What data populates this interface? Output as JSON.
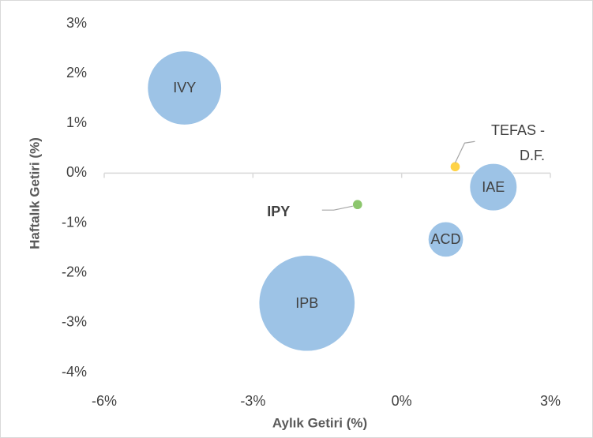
{
  "chart_data": {
    "type": "scatter",
    "x_label": "Aylık Getiri (%)",
    "y_label": "Haftalık Getiri (%)",
    "xlim": [
      -6,
      3
    ],
    "ylim": [
      -4,
      3
    ],
    "xticks": [
      {
        "value": -6,
        "label": "-6%"
      },
      {
        "value": -3,
        "label": "-3%"
      },
      {
        "value": 0,
        "label": "0%"
      },
      {
        "value": 3,
        "label": "3%"
      }
    ],
    "yticks": [
      {
        "value": -4,
        "label": "-4%"
      },
      {
        "value": -3,
        "label": "-3%"
      },
      {
        "value": -2,
        "label": "-2%"
      },
      {
        "value": -1,
        "label": "-1%"
      },
      {
        "value": 0,
        "label": "0%"
      },
      {
        "value": 1,
        "label": "1%"
      },
      {
        "value": 2,
        "label": "2%"
      },
      {
        "value": 3,
        "label": "3%"
      }
    ],
    "series": [
      {
        "name": "IVY",
        "color": "#9dc3e6",
        "x": [
          -4.38
        ],
        "values": [
          1.71
        ],
        "sizes": [
          22
        ]
      },
      {
        "name": "IPB",
        "color": "#9dc3e6",
        "x": [
          -1.91
        ],
        "values": [
          -2.61
        ],
        "sizes": [
          37
        ]
      },
      {
        "name": "ACD",
        "color": "#9dc3e6",
        "x": [
          0.89
        ],
        "values": [
          -1.33
        ],
        "sizes": [
          5
        ]
      },
      {
        "name": "IAE",
        "color": "#9dc3e6",
        "x": [
          1.85
        ],
        "values": [
          -0.28
        ],
        "sizes": [
          9
        ]
      },
      {
        "name": "TEFAS - D.F.",
        "color": "#ffd347",
        "x": [
          1.08
        ],
        "values": [
          0.13
        ],
        "sizes": [
          0.4
        ]
      },
      {
        "name": "IPY",
        "color": "#8cc66d",
        "x": [
          -0.89
        ],
        "values": [
          -0.63
        ],
        "sizes": [
          0.4
        ]
      }
    ]
  }
}
